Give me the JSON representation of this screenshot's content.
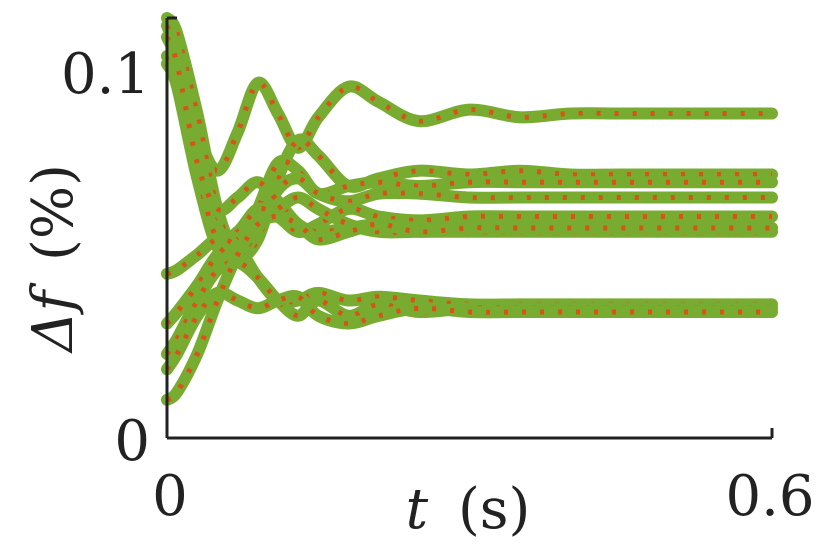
{
  "chart_data": {
    "type": "line",
    "title": "",
    "xlabel_main": "t",
    "xlabel_unit": "(s)",
    "ylabel_main": "Δf",
    "ylabel_unit": "(%)",
    "xlim": [
      0,
      0.6
    ],
    "ylim": [
      0,
      0.11
    ],
    "x_ticks": [
      "0",
      "0.6"
    ],
    "y_ticks": [
      "0",
      "0.1"
    ],
    "colors": {
      "solid": "#77AC30",
      "dotted": "#D95319",
      "axis": "#222222"
    },
    "grid": false,
    "legend": "none",
    "series": [
      {
        "x": [
          0,
          0.01,
          0.03,
          0.05,
          0.07,
          0.09,
          0.11,
          0.13,
          0.15,
          0.18,
          0.21,
          0.25,
          0.3,
          0.35,
          0.4,
          0.45,
          0.5,
          0.55,
          0.6
        ],
        "y": [
          0.1,
          0.098,
          0.08,
          0.07,
          0.08,
          0.093,
          0.085,
          0.076,
          0.084,
          0.092,
          0.088,
          0.083,
          0.086,
          0.084,
          0.085,
          0.085,
          0.085,
          0.085,
          0.085
        ]
      },
      {
        "x": [
          0,
          0.01,
          0.03,
          0.05,
          0.07,
          0.09,
          0.11,
          0.13,
          0.15,
          0.18,
          0.21,
          0.25,
          0.3,
          0.35,
          0.4,
          0.45,
          0.5,
          0.55,
          0.6
        ],
        "y": [
          0.11,
          0.106,
          0.085,
          0.06,
          0.048,
          0.052,
          0.068,
          0.078,
          0.074,
          0.066,
          0.068,
          0.07,
          0.069,
          0.07,
          0.069,
          0.069,
          0.069,
          0.069,
          0.069
        ]
      },
      {
        "x": [
          0,
          0.01,
          0.03,
          0.05,
          0.07,
          0.09,
          0.11,
          0.13,
          0.15,
          0.18,
          0.21,
          0.25,
          0.3,
          0.35,
          0.4,
          0.45,
          0.5,
          0.55,
          0.6
        ],
        "y": [
          0.108,
          0.1,
          0.075,
          0.055,
          0.05,
          0.06,
          0.072,
          0.07,
          0.064,
          0.066,
          0.067,
          0.066,
          0.067,
          0.067,
          0.067,
          0.067,
          0.067,
          0.067,
          0.067
        ]
      },
      {
        "x": [
          0,
          0.01,
          0.03,
          0.05,
          0.07,
          0.09,
          0.11,
          0.13,
          0.15,
          0.18,
          0.21,
          0.25,
          0.3,
          0.35,
          0.4,
          0.45,
          0.5,
          0.55,
          0.6
        ],
        "y": [
          0.098,
          0.092,
          0.068,
          0.05,
          0.047,
          0.055,
          0.065,
          0.068,
          0.064,
          0.062,
          0.064,
          0.064,
          0.063,
          0.063,
          0.063,
          0.063,
          0.063,
          0.063,
          0.063
        ]
      },
      {
        "x": [
          0,
          0.01,
          0.03,
          0.05,
          0.07,
          0.09,
          0.11,
          0.13,
          0.15,
          0.18,
          0.21,
          0.25,
          0.3,
          0.35,
          0.4,
          0.45,
          0.5,
          0.55,
          0.6
        ],
        "y": [
          0.1,
          0.095,
          0.07,
          0.052,
          0.054,
          0.06,
          0.058,
          0.054,
          0.056,
          0.06,
          0.058,
          0.057,
          0.058,
          0.058,
          0.058,
          0.058,
          0.058,
          0.058,
          0.058
        ]
      },
      {
        "x": [
          0,
          0.01,
          0.03,
          0.05,
          0.07,
          0.09,
          0.11,
          0.13,
          0.15,
          0.18,
          0.21,
          0.25,
          0.3,
          0.35,
          0.4,
          0.45,
          0.5,
          0.55,
          0.6
        ],
        "y": [
          0.105,
          0.098,
          0.072,
          0.06,
          0.063,
          0.067,
          0.062,
          0.056,
          0.054,
          0.055,
          0.056,
          0.055,
          0.055,
          0.055,
          0.055,
          0.055,
          0.055,
          0.055,
          0.055
        ]
      },
      {
        "x": [
          0,
          0.01,
          0.03,
          0.05,
          0.07,
          0.09,
          0.11,
          0.13,
          0.15,
          0.18,
          0.21,
          0.25,
          0.3,
          0.35,
          0.4,
          0.45,
          0.5,
          0.55,
          0.6
        ],
        "y": [
          0.03,
          0.033,
          0.04,
          0.048,
          0.052,
          0.056,
          0.06,
          0.063,
          0.06,
          0.056,
          0.054,
          0.054,
          0.054,
          0.054,
          0.054,
          0.054,
          0.054,
          0.054,
          0.054
        ]
      },
      {
        "x": [
          0,
          0.01,
          0.03,
          0.05,
          0.07,
          0.09,
          0.11,
          0.13,
          0.15,
          0.18,
          0.21,
          0.25,
          0.3,
          0.35,
          0.4,
          0.45,
          0.5,
          0.55,
          0.6
        ],
        "y": [
          0.043,
          0.044,
          0.048,
          0.052,
          0.05,
          0.042,
          0.036,
          0.036,
          0.038,
          0.036,
          0.037,
          0.036,
          0.035,
          0.035,
          0.035,
          0.035,
          0.035,
          0.035,
          0.035
        ]
      },
      {
        "x": [
          0,
          0.01,
          0.03,
          0.05,
          0.07,
          0.09,
          0.11,
          0.13,
          0.15,
          0.18,
          0.21,
          0.25,
          0.3,
          0.35,
          0.4,
          0.45,
          0.5,
          0.55,
          0.6
        ],
        "y": [
          0.022,
          0.026,
          0.036,
          0.044,
          0.046,
          0.042,
          0.036,
          0.032,
          0.036,
          0.032,
          0.035,
          0.033,
          0.034,
          0.034,
          0.034,
          0.034,
          0.034,
          0.034,
          0.034
        ]
      },
      {
        "x": [
          0,
          0.01,
          0.03,
          0.05,
          0.07,
          0.09,
          0.11,
          0.13,
          0.15,
          0.18,
          0.21,
          0.25,
          0.3,
          0.35,
          0.4,
          0.45,
          0.5,
          0.55,
          0.6
        ],
        "y": [
          0.018,
          0.022,
          0.032,
          0.038,
          0.036,
          0.034,
          0.036,
          0.037,
          0.032,
          0.03,
          0.032,
          0.034,
          0.033,
          0.033,
          0.033,
          0.033,
          0.033,
          0.033,
          0.033
        ]
      },
      {
        "x": [
          0,
          0.01,
          0.03,
          0.05,
          0.07,
          0.09,
          0.11,
          0.13,
          0.15,
          0.18,
          0.21,
          0.25,
          0.3,
          0.35,
          0.4,
          0.45,
          0.5,
          0.55,
          0.6
        ],
        "y": [
          0.01,
          0.012,
          0.022,
          0.036,
          0.048,
          0.056,
          0.058,
          0.056,
          0.052,
          0.054,
          0.056,
          0.054,
          0.055,
          0.055,
          0.055,
          0.055,
          0.055,
          0.055,
          0.055
        ]
      }
    ]
  }
}
